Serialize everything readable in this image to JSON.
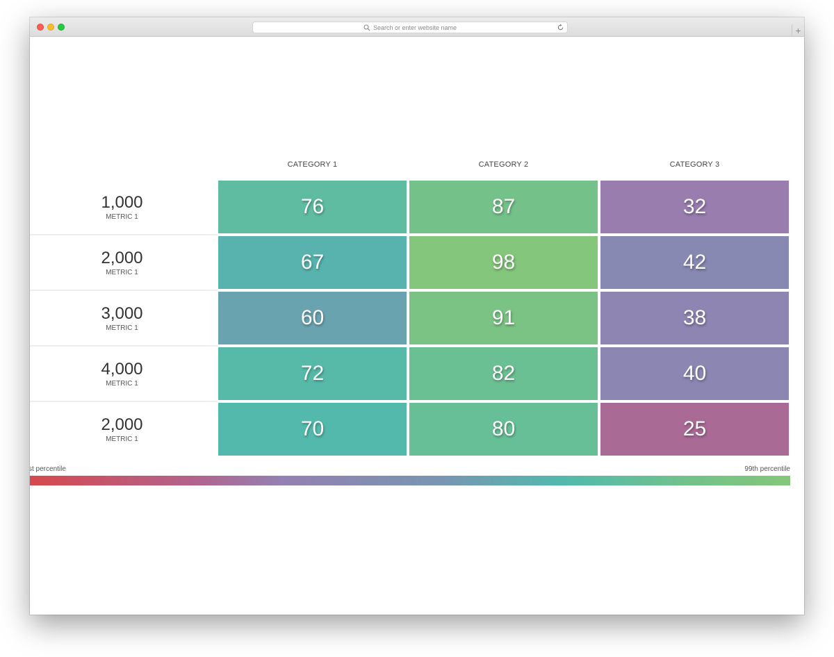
{
  "browser": {
    "url_placeholder": "Search or enter website name",
    "new_tab_glyph": "+",
    "icons": [
      "search-icon",
      "reload-icon"
    ]
  },
  "chart_data": {
    "type": "heatmap",
    "columns": [
      "CATEGORY 1",
      "CATEGORY 2",
      "CATEGORY 3"
    ],
    "rows": [
      {
        "value": "1,000",
        "metric": "METRIC 1",
        "cells": [
          76,
          87,
          32
        ]
      },
      {
        "value": "2,000",
        "metric": "METRIC 1",
        "cells": [
          67,
          98,
          42
        ]
      },
      {
        "value": "3,000",
        "metric": "METRIC 1",
        "cells": [
          60,
          91,
          38
        ]
      },
      {
        "value": "4,000",
        "metric": "METRIC 1",
        "cells": [
          72,
          82,
          40
        ]
      },
      {
        "value": "2,000",
        "metric": "METRIC 1",
        "cells": [
          70,
          80,
          25
        ]
      }
    ],
    "scale": {
      "min_label": "st percentile",
      "max_label": "99th percentile",
      "colors": [
        "#d6494e",
        "#b1648e",
        "#9480b2",
        "#7697b2",
        "#52b9ad",
        "#73c28a",
        "#85c67a"
      ]
    }
  }
}
